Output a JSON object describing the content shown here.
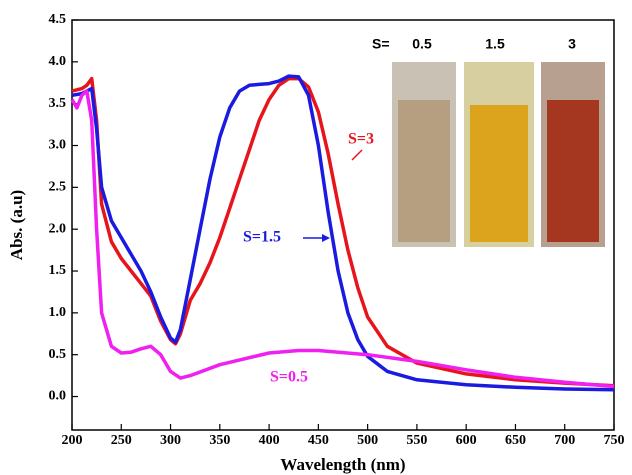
{
  "chart_data": {
    "type": "line",
    "xlabel": "Wavelength (nm)",
    "ylabel": "Abs. (a.u)",
    "xlim": [
      200,
      750
    ],
    "xticks": [
      200,
      250,
      300,
      350,
      400,
      450,
      500,
      550,
      600,
      650,
      700,
      750
    ],
    "ylim": [
      -0.4,
      4.5
    ],
    "yticks": [
      {
        "value": 0,
        "label": "0.0"
      },
      0.5,
      {
        "value": 1,
        "label": "1.0"
      },
      1.5,
      {
        "value": 2,
        "label": "2.0"
      },
      2.5,
      {
        "value": 3,
        "label": "3.0"
      },
      3.5,
      {
        "value": 4,
        "label": "4.0"
      },
      4.5
    ],
    "series": [
      {
        "name": "S=3",
        "color": "#e8141b",
        "x": [
          200,
          210,
          215,
          220,
          225,
          230,
          240,
          250,
          260,
          270,
          280,
          290,
          300,
          305,
          310,
          320,
          330,
          340,
          350,
          360,
          370,
          380,
          390,
          400,
          410,
          420,
          430,
          440,
          450,
          460,
          470,
          480,
          490,
          500,
          520,
          550,
          600,
          650,
          700,
          750
        ],
        "values": [
          3.65,
          3.68,
          3.72,
          3.8,
          3.3,
          2.3,
          1.85,
          1.65,
          1.5,
          1.35,
          1.2,
          0.9,
          0.68,
          0.63,
          0.75,
          1.15,
          1.35,
          1.6,
          1.9,
          2.25,
          2.6,
          2.95,
          3.3,
          3.55,
          3.72,
          3.8,
          3.8,
          3.7,
          3.4,
          2.9,
          2.3,
          1.75,
          1.3,
          0.95,
          0.6,
          0.4,
          0.27,
          0.2,
          0.16,
          0.13
        ]
      },
      {
        "name": "S=1.5",
        "color": "#1a1ae0",
        "x": [
          200,
          210,
          220,
          225,
          230,
          240,
          250,
          260,
          270,
          280,
          290,
          300,
          305,
          310,
          320,
          330,
          340,
          350,
          360,
          370,
          380,
          390,
          400,
          410,
          420,
          430,
          440,
          450,
          460,
          470,
          480,
          490,
          500,
          520,
          550,
          600,
          650,
          700,
          750
        ],
        "values": [
          3.6,
          3.62,
          3.68,
          3.2,
          2.5,
          2.1,
          1.9,
          1.7,
          1.5,
          1.25,
          0.95,
          0.7,
          0.65,
          0.8,
          1.4,
          2.0,
          2.6,
          3.1,
          3.45,
          3.65,
          3.72,
          3.73,
          3.74,
          3.77,
          3.83,
          3.82,
          3.6,
          3.0,
          2.2,
          1.5,
          1.0,
          0.68,
          0.48,
          0.3,
          0.2,
          0.14,
          0.11,
          0.09,
          0.08
        ]
      },
      {
        "name": "S=0.5",
        "color": "#f020f0",
        "x": [
          200,
          205,
          210,
          215,
          220,
          225,
          230,
          240,
          250,
          260,
          270,
          280,
          290,
          300,
          310,
          320,
          350,
          400,
          430,
          450,
          500,
          550,
          600,
          650,
          700,
          750
        ],
        "values": [
          3.55,
          3.45,
          3.6,
          3.65,
          3.3,
          2.0,
          1.0,
          0.6,
          0.52,
          0.53,
          0.57,
          0.6,
          0.5,
          0.3,
          0.22,
          0.25,
          0.38,
          0.52,
          0.55,
          0.55,
          0.5,
          0.42,
          0.32,
          0.23,
          0.17,
          0.12
        ]
      }
    ],
    "inset": {
      "label": "S=",
      "samples": [
        "0.5",
        "1.5",
        "3"
      ]
    }
  }
}
